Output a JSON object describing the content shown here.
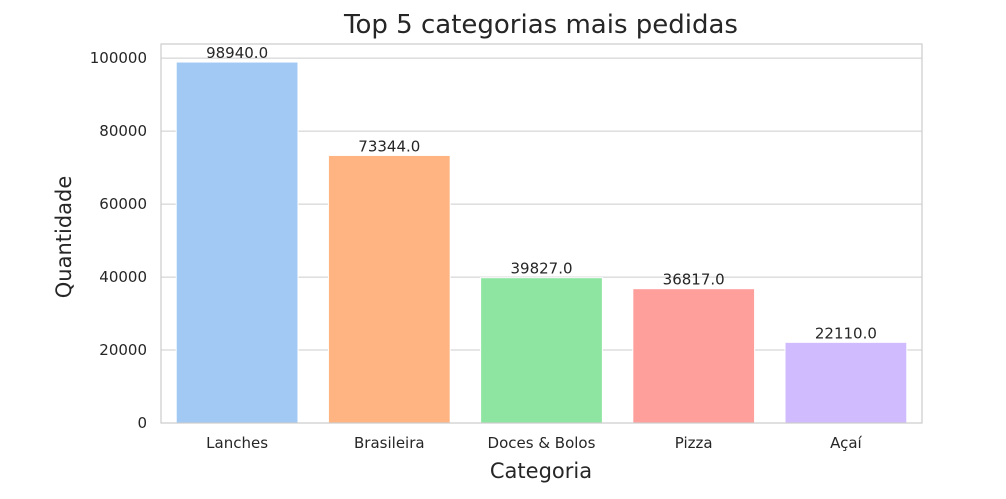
{
  "chart_data": {
    "type": "bar",
    "title": "Top 5 categorias mais pedidas",
    "xlabel": "Categoria",
    "ylabel": "Quantidade",
    "categories": [
      "Lanches",
      "Brasileira",
      "Doces & Bolos",
      "Pizza",
      "Açaí"
    ],
    "values": [
      98940.0,
      73344.0,
      39827.0,
      36817.0,
      22110.0
    ],
    "data_labels": [
      "98940.0",
      "73344.0",
      "39827.0",
      "36817.0",
      "22110.0"
    ],
    "colors": [
      "#a1c9f4",
      "#ffb482",
      "#8de5a1",
      "#ff9f9b",
      "#d0bbff"
    ],
    "ylim": [
      0,
      103887
    ],
    "yticks": [
      0,
      20000,
      40000,
      60000,
      80000,
      100000
    ],
    "ytick_labels": [
      "0",
      "20000",
      "40000",
      "60000",
      "80000",
      "100000"
    ],
    "grid": true,
    "legend": "none"
  }
}
